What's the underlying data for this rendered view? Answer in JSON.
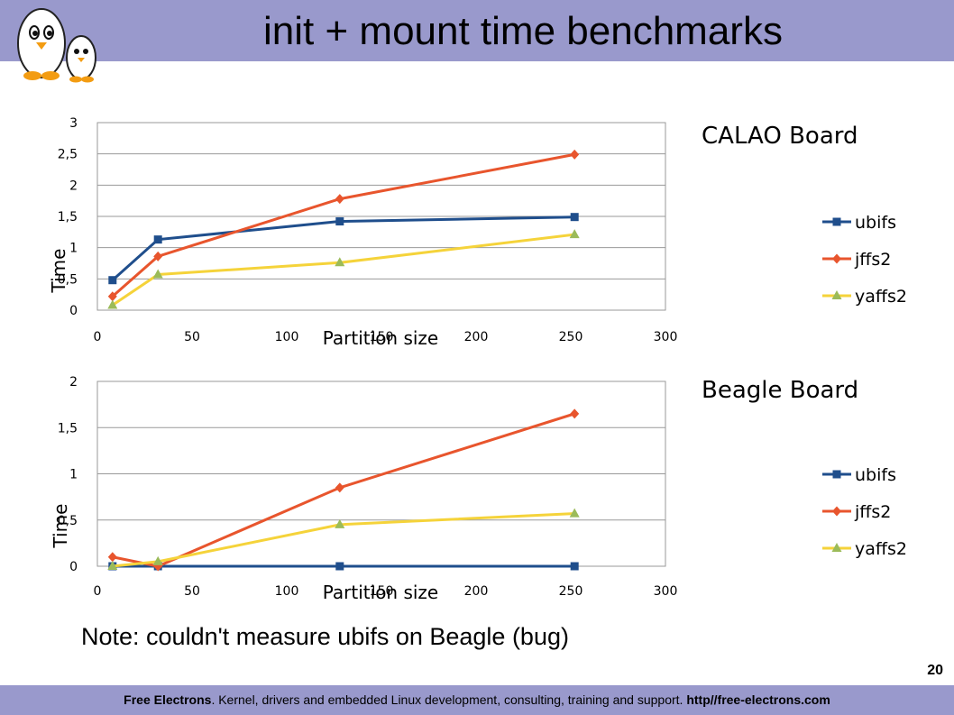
{
  "slide": {
    "title": "init + mount time benchmarks",
    "note": "Note: couldn't measure ubifs on Beagle (bug)",
    "page_number": "20",
    "footer": {
      "brand": "Free Electrons",
      "text": ". Kernel, drivers and embedded Linux development, consulting, training and support. ",
      "url": "http//free-electrons.com"
    }
  },
  "colors": {
    "header": "#9999cc",
    "ubifs": "#1f4e8c",
    "jffs2": "#e8552d",
    "yaffs2": "#f5d33a"
  },
  "chart_data": [
    {
      "type": "line",
      "title": "CALAO Board",
      "xlabel": "Partition size",
      "ylabel": "Time",
      "xlim": [
        0,
        300
      ],
      "ylim": [
        0,
        3
      ],
      "xticks": [
        "0",
        "50",
        "100",
        "150",
        "200",
        "250",
        "300"
      ],
      "yticks": [
        "0",
        "0,5",
        "1",
        "1,5",
        "2",
        "2,5",
        "3"
      ],
      "grid": true,
      "legend": "right",
      "series": [
        {
          "name": "ubifs",
          "marker": "square",
          "x": [
            8,
            32,
            128,
            252
          ],
          "y": [
            0.48,
            1.13,
            1.42,
            1.49
          ]
        },
        {
          "name": "jffs2",
          "marker": "diamond",
          "x": [
            8,
            32,
            128,
            252
          ],
          "y": [
            0.22,
            0.86,
            1.78,
            2.49
          ]
        },
        {
          "name": "yaffs2",
          "marker": "triangle",
          "x": [
            8,
            32,
            128,
            252
          ],
          "y": [
            0.08,
            0.57,
            0.76,
            1.21
          ]
        }
      ]
    },
    {
      "type": "line",
      "title": "Beagle Board",
      "xlabel": "Partition size",
      "ylabel": "Time",
      "xlim": [
        0,
        300
      ],
      "ylim": [
        0,
        2
      ],
      "xticks": [
        "0",
        "50",
        "100",
        "150",
        "200",
        "250",
        "300"
      ],
      "yticks": [
        "0",
        "0,5",
        "1",
        "1,5",
        "2"
      ],
      "grid": true,
      "legend": "right",
      "series": [
        {
          "name": "ubifs",
          "marker": "square",
          "x": [
            8,
            32,
            128,
            252
          ],
          "y": [
            0,
            0,
            0,
            0
          ]
        },
        {
          "name": "jffs2",
          "marker": "diamond",
          "x": [
            8,
            32,
            128,
            252
          ],
          "y": [
            0.1,
            0.0,
            0.85,
            1.65
          ]
        },
        {
          "name": "yaffs2",
          "marker": "triangle",
          "x": [
            8,
            32,
            128,
            252
          ],
          "y": [
            0.0,
            0.05,
            0.45,
            0.57
          ]
        }
      ]
    }
  ]
}
